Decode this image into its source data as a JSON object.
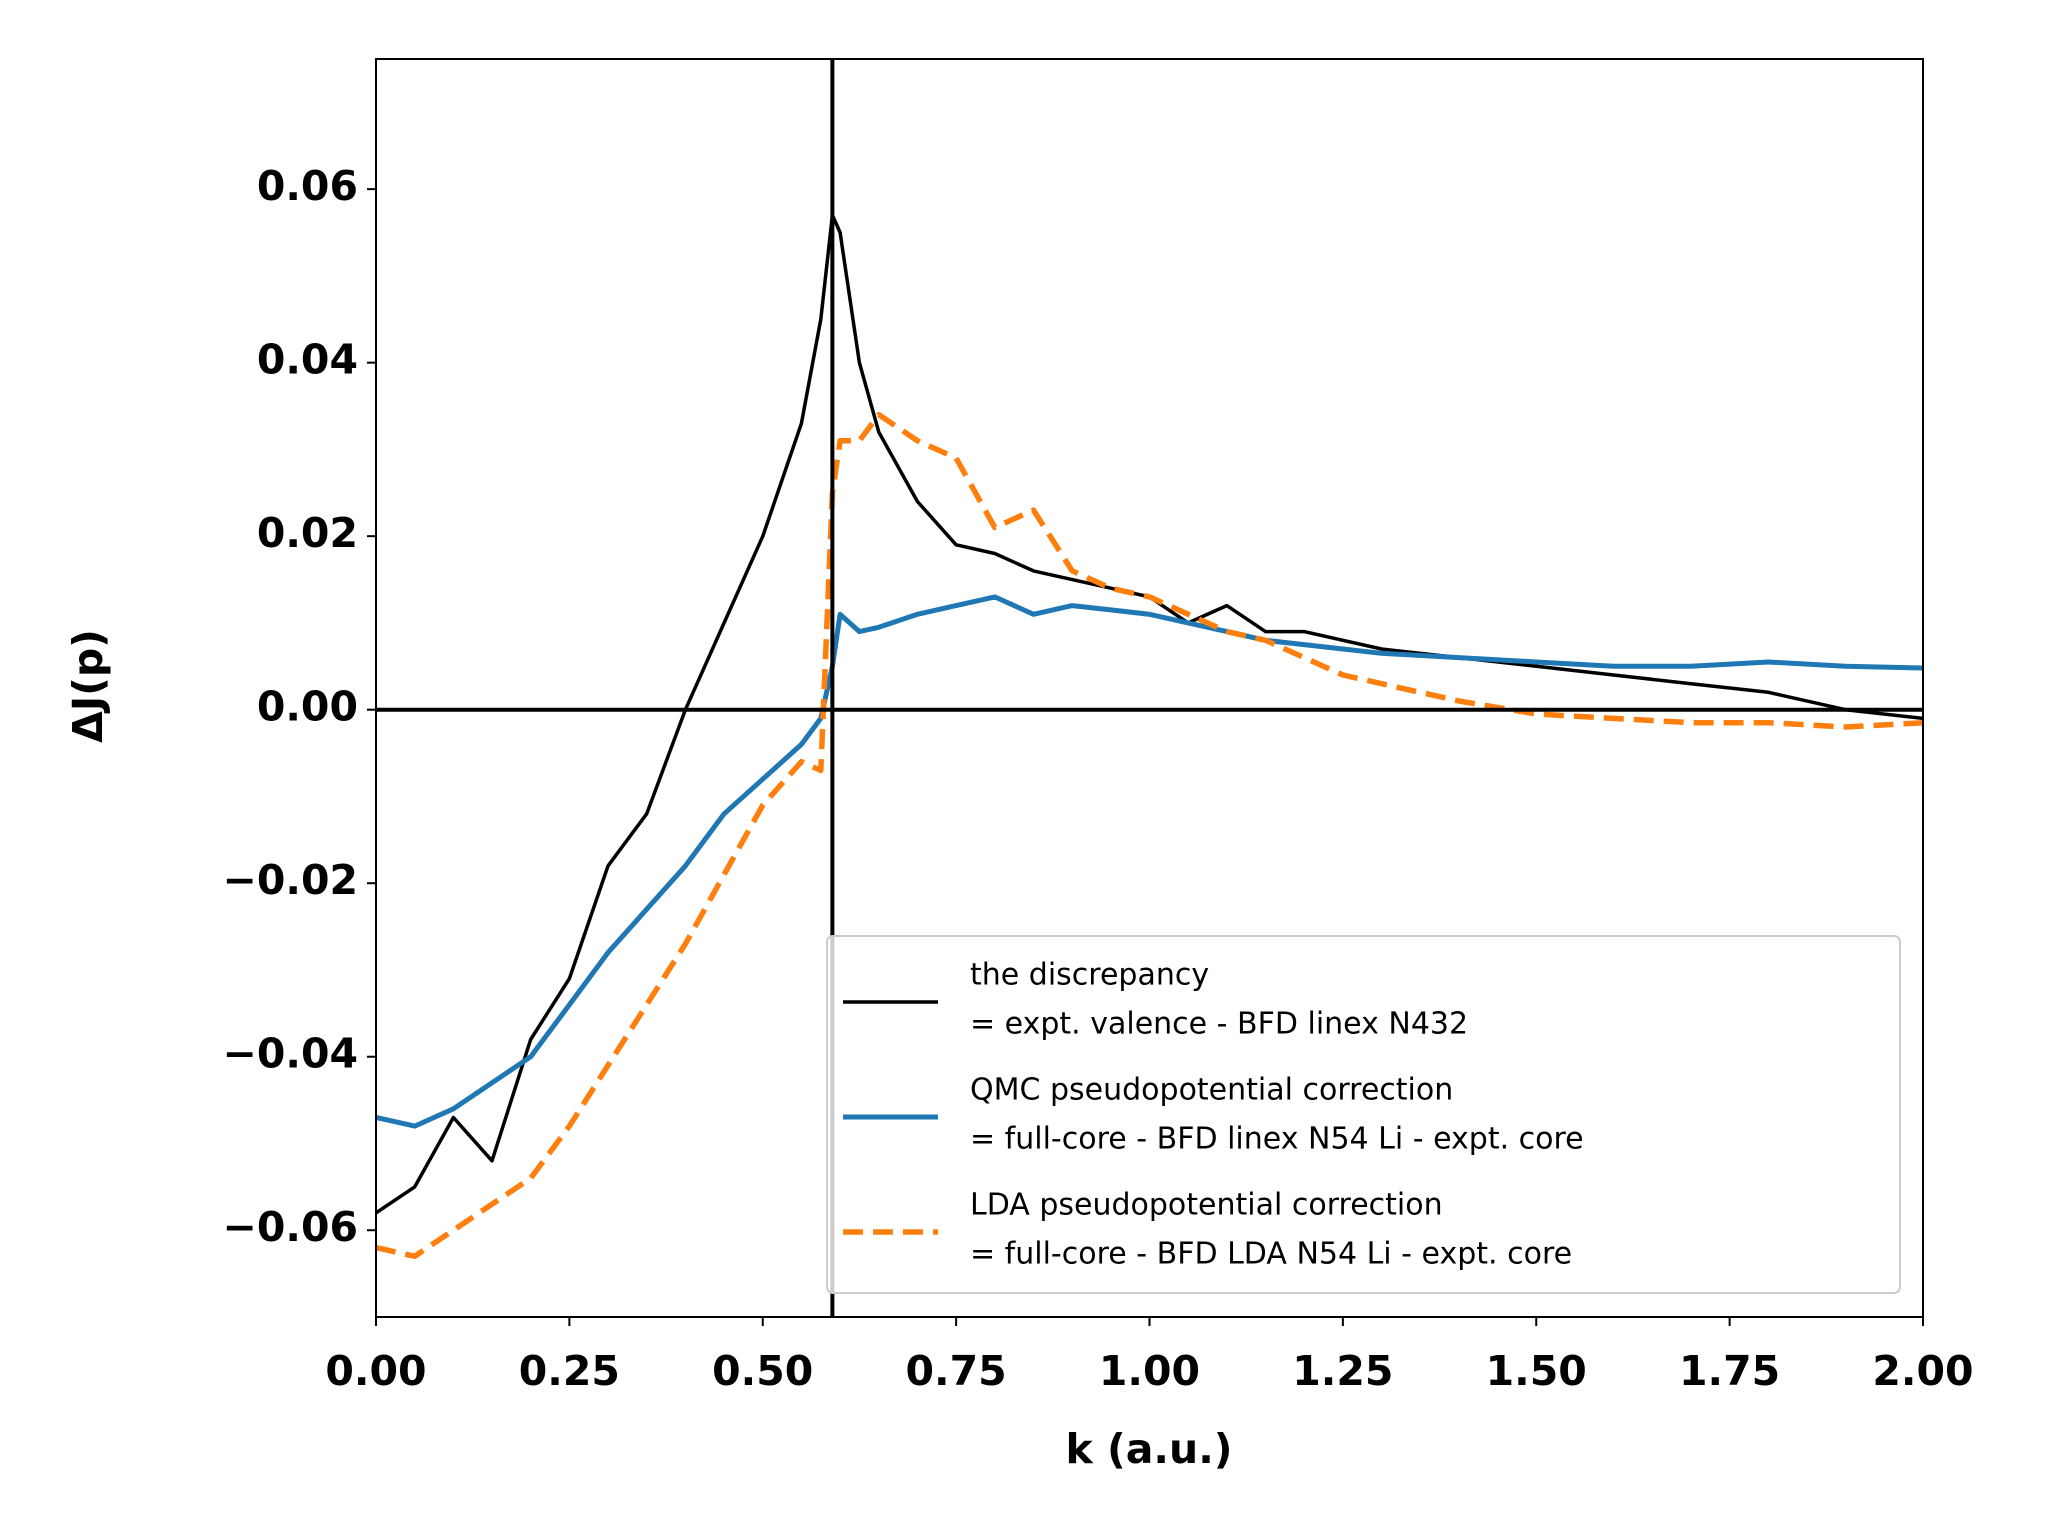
{
  "chart_data": {
    "type": "line",
    "x_label": "k (a.u.)",
    "y_label": "ΔJ(p)",
    "x": [
      0,
      0.05,
      0.1,
      0.15,
      0.2,
      0.25,
      0.3,
      0.35,
      0.4,
      0.45,
      0.5,
      0.55,
      0.575,
      0.59,
      0.6,
      0.625,
      0.65,
      0.7,
      0.75,
      0.8,
      0.85,
      0.9,
      0.95,
      1.0,
      1.05,
      1.1,
      1.15,
      1.2,
      1.25,
      1.3,
      1.4,
      1.5,
      1.6,
      1.7,
      1.8,
      1.9,
      2.0
    ],
    "series": [
      {
        "name": "the discrepancy",
        "formula": "= expt. valence - BFD linex N432",
        "color": "#000000",
        "dash": false,
        "values": [
          -0.058,
          -0.055,
          -0.047,
          -0.052,
          -0.038,
          -0.031,
          -0.018,
          -0.012,
          0.0,
          0.01,
          0.02,
          0.033,
          0.045,
          0.057,
          0.055,
          0.04,
          0.032,
          0.024,
          0.019,
          0.018,
          0.016,
          0.015,
          0.014,
          0.013,
          0.01,
          0.012,
          0.009,
          0.009,
          0.008,
          0.007,
          0.006,
          0.005,
          0.004,
          0.003,
          0.002,
          0.0,
          -0.001
        ]
      },
      {
        "name": "QMC pseudopotential correction",
        "formula": "= full-core - BFD linex N54 Li - expt. core",
        "color": "#1f77b4",
        "dash": false,
        "values": [
          -0.047,
          -0.048,
          -0.046,
          -0.043,
          -0.04,
          -0.034,
          -0.028,
          -0.023,
          -0.018,
          -0.012,
          -0.008,
          -0.004,
          -0.001,
          0.005,
          0.011,
          0.009,
          0.0095,
          0.011,
          0.012,
          0.013,
          0.011,
          0.012,
          0.0115,
          0.011,
          0.01,
          0.009,
          0.008,
          0.0075,
          0.007,
          0.0065,
          0.006,
          0.0055,
          0.005,
          0.005,
          0.0055,
          0.005,
          0.0048
        ]
      },
      {
        "name": "LDA pseudopotential correction",
        "formula": "= full-core - BFD LDA N54 Li - expt. core",
        "color": "#ff7f0e",
        "dash": true,
        "values": [
          -0.062,
          -0.063,
          -0.06,
          -0.057,
          -0.054,
          -0.048,
          -0.041,
          -0.034,
          -0.027,
          -0.019,
          -0.011,
          -0.006,
          -0.007,
          0.025,
          0.031,
          0.031,
          0.034,
          0.031,
          0.029,
          0.021,
          0.023,
          0.016,
          0.014,
          0.013,
          0.011,
          0.009,
          0.008,
          0.006,
          0.004,
          0.003,
          0.001,
          -0.0005,
          -0.001,
          -0.0015,
          -0.0015,
          -0.002,
          -0.0015
        ]
      }
    ],
    "reference_lines": {
      "x": 0.59,
      "y": 0
    },
    "xlim": [
      0,
      2
    ],
    "ylim": [
      -0.07,
      0.075
    ],
    "xticks": [
      {
        "value": 0,
        "label": "0.00"
      },
      {
        "value": 0.25,
        "label": "0.25"
      },
      {
        "value": 0.5,
        "label": "0.50"
      },
      {
        "value": 0.75,
        "label": "0.75"
      },
      {
        "value": 1,
        "label": "1.00"
      },
      {
        "value": 1.25,
        "label": "1.25"
      },
      {
        "value": 1.5,
        "label": "1.50"
      },
      {
        "value": 1.75,
        "label": "1.75"
      },
      {
        "value": 2,
        "label": "2.00"
      }
    ],
    "yticks": [
      {
        "value": -0.06,
        "label": "−0.06"
      },
      {
        "value": -0.04,
        "label": "−0.04"
      },
      {
        "value": -0.02,
        "label": "−0.02"
      },
      {
        "value": 0,
        "label": "0.00"
      },
      {
        "value": 0.02,
        "label": "0.02"
      },
      {
        "value": 0.04,
        "label": "0.04"
      },
      {
        "value": 0.06,
        "label": "0.06"
      }
    ],
    "legend": "lower right",
    "grid": false
  }
}
